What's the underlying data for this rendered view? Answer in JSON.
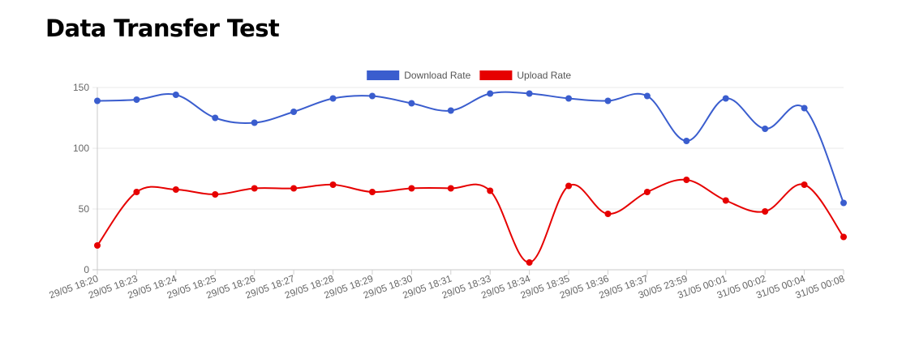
{
  "page": {
    "title": "Data Transfer Test"
  },
  "chart_data": {
    "type": "line",
    "title": "",
    "xlabel": "",
    "ylabel": "",
    "categories": [
      "29/05 18:20",
      "29/05 18:23",
      "29/05 18:24",
      "29/05 18:25",
      "29/05 18:26",
      "29/05 18:27",
      "29/05 18:28",
      "29/05 18:29",
      "29/05 18:30",
      "29/05 18:31",
      "29/05 18:33",
      "29/05 18:34",
      "29/05 18:35",
      "29/05 18:36",
      "29/05 18:37",
      "30/05 23:59",
      "31/05 00:01",
      "31/05 00:02",
      "31/05 00:04",
      "31/05 00:08"
    ],
    "series": [
      {
        "name": "Download Rate",
        "color": "#3A5DCE",
        "values": [
          139,
          140,
          144,
          125,
          121,
          130,
          141,
          143,
          137,
          131,
          145,
          145,
          141,
          139,
          143,
          106,
          141,
          116,
          133,
          55
        ]
      },
      {
        "name": "Upload Rate",
        "color": "#E60000",
        "values": [
          20,
          64,
          66,
          62,
          67,
          67,
          70,
          64,
          67,
          67,
          65,
          6,
          69,
          46,
          64,
          74,
          57,
          48,
          70,
          27
        ]
      }
    ],
    "ylim": [
      0,
      150
    ],
    "yticks": [
      0,
      50,
      100,
      150
    ],
    "grid": true,
    "legend": "top-center"
  }
}
